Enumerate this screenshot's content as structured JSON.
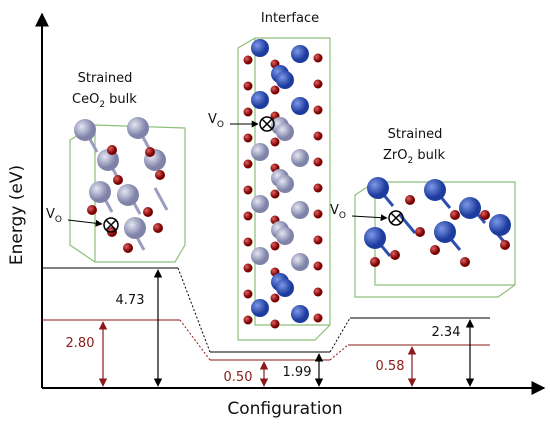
{
  "axes": {
    "y_label": "Energy (eV)",
    "x_label": "Configuration"
  },
  "structures": [
    {
      "line1": "Strained",
      "formula": "CeO",
      "sub": "2",
      "rest": " bulk"
    },
    {
      "line1": "Interface"
    },
    {
      "line1": "Strained",
      "formula": "ZrO",
      "sub": "2",
      "rest": " bulk"
    }
  ],
  "vacancy_label": {
    "main": "V",
    "sub": "O"
  },
  "energies": [
    "4.73",
    "2.80",
    "0.50",
    "1.99",
    "0.58",
    "2.34"
  ]
}
